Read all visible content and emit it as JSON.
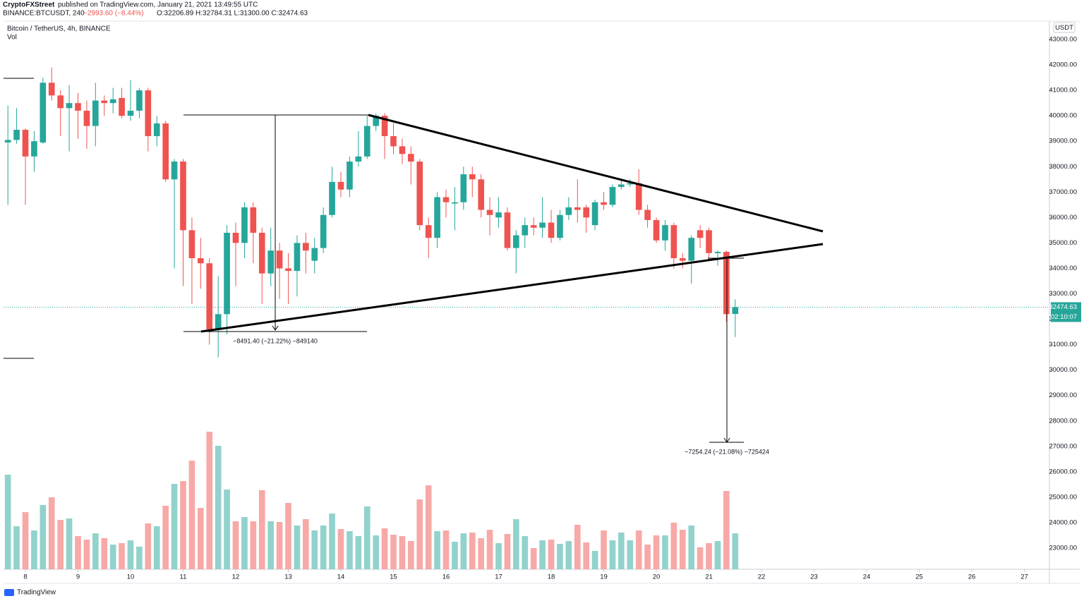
{
  "header": {
    "author": "CryptoFXStreet",
    "published": "published on TradingView.com, January 21, 2021 13:49:55 UTC",
    "symbol": "BINANCE:BTCUSDT, 240",
    "change": "−2993.60 (−8.44%)",
    "ohlc": "O:32206.89 H:32784.31 L:31300.00 C:32474.63"
  },
  "footer": {
    "brand": "TradingView"
  },
  "chart_data": {
    "type": "candlestick",
    "title": "Bitcoin / TetherUS, 4h, BINANCE",
    "volume_label": "Vol",
    "currency": "USDT",
    "countdown": "02:10:07",
    "annotations": [
      "−8491.40 (−21.22%) −849140",
      "−7254.24 (−21.08%) −725424"
    ],
    "x": [
      7.667,
      7.833,
      8,
      8.167,
      8.333,
      8.5,
      8.667,
      8.833,
      9,
      9.167,
      9.333,
      9.5,
      9.667,
      9.833,
      10,
      10.167,
      10.333,
      10.5,
      10.667,
      10.833,
      11,
      11.167,
      11.333,
      11.5,
      11.667,
      11.833,
      12,
      12.167,
      12.333,
      12.5,
      12.667,
      12.833,
      13,
      13.167,
      13.333,
      13.5,
      13.667,
      13.833,
      14,
      14.167,
      14.333,
      14.5,
      14.667,
      14.833,
      15,
      15.167,
      15.333,
      15.5,
      15.667,
      15.833,
      16,
      16.167,
      16.333,
      16.5,
      16.667,
      16.833,
      17,
      17.167,
      17.333,
      17.5,
      17.667,
      17.833,
      18,
      18.167,
      18.333,
      18.5,
      18.667,
      18.833,
      19,
      19.167,
      19.333,
      19.5,
      19.667,
      19.833,
      20,
      20.167,
      20.333,
      20.5,
      20.667,
      20.833,
      21,
      21.167,
      21.333,
      21.5
    ],
    "open": [
      38950,
      39050,
      39450,
      38400,
      38950,
      41300,
      40800,
      40300,
      40500,
      40200,
      39600,
      40600,
      40500,
      40700,
      40000,
      40200,
      41000,
      39200,
      39700,
      37500,
      38200,
      35500,
      34400,
      34200,
      31600,
      32200,
      35400,
      35000,
      36400,
      35400,
      33800,
      34700,
      34000,
      33900,
      35000,
      34300,
      34800,
      36100,
      37400,
      37100,
      38200,
      38400,
      39600,
      40000,
      39200,
      38800,
      38500,
      38200,
      35700,
      35200,
      36800,
      36550,
      36600,
      37700,
      37500,
      36300,
      36000,
      36200,
      34800,
      35300,
      35700,
      35600,
      35800,
      35200,
      36100,
      36400,
      36400,
      35700,
      36600,
      36500,
      37200,
      37300,
      37350,
      36300,
      35900,
      35100,
      35700,
      34400,
      34300,
      35500,
      35500,
      34600,
      34650,
      32206.89
    ],
    "high": [
      40400,
      40300,
      39500,
      39400,
      41500,
      41900,
      41000,
      41200,
      40900,
      40600,
      41300,
      40800,
      41100,
      41100,
      41400,
      41100,
      41100,
      40000,
      39800,
      38300,
      38300,
      36000,
      35200,
      34400,
      33700,
      35700,
      35800,
      36600,
      36600,
      35600,
      35600,
      35000,
      34600,
      35300,
      35400,
      35200,
      36400,
      38000,
      37800,
      38400,
      39400,
      40000,
      40100,
      40100,
      39700,
      39100,
      38800,
      38300,
      36000,
      37000,
      37100,
      37200,
      38000,
      38000,
      37700,
      36800,
      36800,
      36400,
      35500,
      36000,
      36000,
      36800,
      36300,
      36300,
      36800,
      37500,
      36500,
      36700,
      37000,
      37300,
      37500,
      37500,
      37900,
      36500,
      36000,
      35900,
      35800,
      34600,
      35300,
      35700,
      35600,
      34700,
      34700,
      32784.31
    ],
    "low": [
      36500,
      38900,
      36500,
      37800,
      38900,
      40600,
      39200,
      38600,
      39100,
      38700,
      38800,
      40000,
      40100,
      39900,
      39800,
      39900,
      38600,
      38800,
      37400,
      34000,
      33300,
      32600,
      33200,
      31000,
      30500,
      31400,
      33300,
      34400,
      34200,
      32600,
      33300,
      32800,
      32600,
      32900,
      33800,
      33800,
      34600,
      36000,
      36800,
      36800,
      38000,
      38300,
      39400,
      38300,
      38500,
      38100,
      37300,
      35500,
      34400,
      34800,
      36000,
      35500,
      36300,
      36800,
      36000,
      35300,
      35600,
      34700,
      33800,
      34800,
      35300,
      35200,
      35000,
      35100,
      35900,
      35800,
      35400,
      35500,
      36300,
      36400,
      37100,
      37200,
      36100,
      35600,
      35000,
      34700,
      34000,
      34000,
      33400,
      34800,
      34300,
      34100,
      31900,
      31300
    ],
    "close": [
      39050,
      39450,
      38400,
      39000,
      41300,
      40800,
      40300,
      40500,
      40200,
      39600,
      40600,
      40500,
      40650,
      40000,
      40200,
      41000,
      39200,
      39700,
      37500,
      38200,
      35500,
      34400,
      34200,
      31600,
      32200,
      35400,
      35000,
      36400,
      35400,
      33800,
      34700,
      34000,
      33900,
      35000,
      34700,
      34800,
      36100,
      37400,
      37100,
      38200,
      38400,
      39600,
      40000,
      39200,
      38800,
      38500,
      38200,
      35700,
      35200,
      36800,
      36600,
      36600,
      37700,
      37500,
      36300,
      36100,
      36200,
      34800,
      35300,
      35700,
      35600,
      35800,
      35200,
      36100,
      36400,
      36300,
      36000,
      36600,
      36500,
      37200,
      37300,
      37350,
      36300,
      35900,
      35100,
      35700,
      34400,
      34300,
      35200,
      35200,
      34600,
      34650,
      32200,
      32474.63
    ],
    "volume": [
      134,
      61,
      81,
      55,
      91,
      102,
      70,
      72,
      47,
      42,
      51,
      44,
      35,
      37,
      41,
      32,
      65,
      61,
      90,
      121,
      125,
      154,
      87,
      195,
      175,
      113,
      68,
      74,
      68,
      112,
      68,
      67,
      94,
      62,
      71,
      55,
      62,
      79,
      57,
      54,
      47,
      89,
      48,
      58,
      49,
      47,
      40,
      99,
      119,
      54,
      55,
      39,
      51,
      52,
      44,
      56,
      37,
      50,
      71,
      47,
      30,
      41,
      42,
      36,
      40,
      63,
      38,
      26,
      55,
      41,
      52,
      41,
      55,
      35,
      48,
      48,
      66,
      56,
      62,
      31,
      37,
      40,
      111,
      51
    ],
    "xlim": [
      7.584,
      27.476
    ],
    "xticks": [
      8,
      9,
      10,
      11,
      12,
      13,
      14,
      15,
      16,
      17,
      18,
      19,
      20,
      21,
      22,
      23,
      24,
      25,
      26,
      27
    ],
    "ylim": [
      22168,
      43721
    ],
    "yticks": [
      {
        "value": 23000,
        "label": "23000.00"
      },
      {
        "value": 24000,
        "label": "24000.00"
      },
      {
        "value": 25000,
        "label": "25000.00"
      },
      {
        "value": 26000,
        "label": "26000.00"
      },
      {
        "value": 27000,
        "label": "27000.00"
      },
      {
        "value": 28000,
        "label": "28000.00"
      },
      {
        "value": 29000,
        "label": "29000.00"
      },
      {
        "value": 30000,
        "label": "30000.00"
      },
      {
        "value": 31000,
        "label": "31000.00"
      },
      {
        "value": 32000,
        "label": "32000.00"
      },
      {
        "value": 33000,
        "label": "33000.00"
      },
      {
        "value": 34000,
        "label": "34000.00"
      },
      {
        "value": 35000,
        "label": "35000.00"
      },
      {
        "value": 36000,
        "label": "36000.00"
      },
      {
        "value": 37000,
        "label": "37000.00"
      },
      {
        "value": 38000,
        "label": "38000.00"
      },
      {
        "value": 39000,
        "label": "39000.00"
      },
      {
        "value": 40000,
        "label": "40000.00"
      },
      {
        "value": 41000,
        "label": "41000.00"
      },
      {
        "value": 42000,
        "label": "42000.00"
      },
      {
        "value": 43000,
        "label": "43000.00"
      }
    ],
    "y2lim": [
      0,
      300
    ],
    "grid": false,
    "up_color": "#26a69a",
    "down_color": "#ef5350",
    "volume_up_color": "#92d2cc",
    "volume_down_color": "#f7a9a7"
  }
}
